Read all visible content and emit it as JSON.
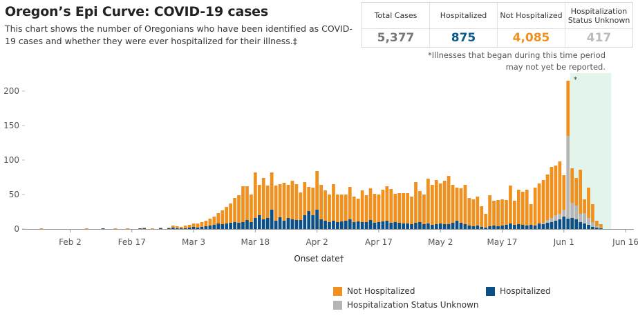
{
  "title": "Oregon’s Epi Curve: COVID-19 cases",
  "subtitle": "This chart shows the number of Oregonians who have been identified as COVID-19 cases and whether they were ever hospitalized for their illness.‡",
  "summary": {
    "total": {
      "label": "Total Cases",
      "value": "5,377",
      "color": "#777777"
    },
    "hosp": {
      "label": "Hospitalized",
      "value": "875",
      "color": "#0a5a8c"
    },
    "nothosp": {
      "label": "Not Hospitalized",
      "value": "4,085",
      "color": "#f0901e"
    },
    "unknown": {
      "label": "Hospitalization Status Unknown",
      "value": "417",
      "color": "#bbbbbb"
    }
  },
  "note": "*Illnesses that began during this time period may not yet be reported.",
  "legend": {
    "not_hosp": "Not Hospitalized",
    "hosp": "Hospitalized",
    "unknown": "Hospitalization Status Unknown"
  },
  "chart_data": {
    "type": "bar",
    "stacked": true,
    "xlabel": "Onset date†",
    "ylabel": "",
    "ylim": [
      0,
      220
    ],
    "yticks": [
      0,
      50,
      100,
      150,
      200
    ],
    "xticks": [
      "Feb 2",
      "Feb 17",
      "Mar 3",
      "Mar 18",
      "Apr 2",
      "Apr 17",
      "May 2",
      "May 17",
      "Jun 1",
      "Jun 16"
    ],
    "x_start": "Jan 22",
    "x_end": "Jun 18",
    "shaded_region": {
      "from": "Jun 3",
      "to": "Jun 12",
      "label": "*"
    },
    "colors": {
      "hosp": "#0b4f86",
      "unknown": "#b5b5b5",
      "not_hosp": "#f0901e",
      "shade": "#e3f4ea"
    },
    "series": [
      {
        "name": "Hospitalized",
        "key": "hosp"
      },
      {
        "name": "Hospitalization Status Unknown",
        "key": "unknown"
      },
      {
        "name": "Not Hospitalized",
        "key": "not_hosp"
      }
    ],
    "bars": [
      [
        "Jan 26",
        0,
        0,
        1
      ],
      [
        "Feb 6",
        0,
        0,
        1
      ],
      [
        "Feb 10",
        1,
        0,
        0
      ],
      [
        "Feb 13",
        0,
        0,
        1
      ],
      [
        "Feb 16",
        0,
        0,
        1
      ],
      [
        "Feb 19",
        1,
        0,
        0
      ],
      [
        "Feb 20",
        1,
        0,
        1
      ],
      [
        "Feb 22",
        0,
        0,
        1
      ],
      [
        "Feb 24",
        1,
        0,
        1
      ],
      [
        "Feb 26",
        1,
        0,
        1
      ],
      [
        "Feb 27",
        2,
        0,
        3
      ],
      [
        "Feb 28",
        1,
        0,
        3
      ],
      [
        "Feb 29",
        1,
        0,
        2
      ],
      [
        "Mar 1",
        1,
        0,
        4
      ],
      [
        "Mar 2",
        2,
        0,
        4
      ],
      [
        "Mar 3",
        3,
        0,
        5
      ],
      [
        "Mar 4",
        2,
        0,
        6
      ],
      [
        "Mar 5",
        3,
        0,
        7
      ],
      [
        "Mar 6",
        4,
        0,
        8
      ],
      [
        "Mar 7",
        5,
        0,
        10
      ],
      [
        "Mar 8",
        6,
        0,
        12
      ],
      [
        "Mar 9",
        8,
        0,
        15
      ],
      [
        "Mar 10",
        7,
        0,
        20
      ],
      [
        "Mar 11",
        8,
        0,
        24
      ],
      [
        "Mar 12",
        9,
        0,
        28
      ],
      [
        "Mar 13",
        10,
        0,
        35
      ],
      [
        "Mar 14",
        9,
        0,
        40
      ],
      [
        "Mar 15",
        10,
        0,
        52
      ],
      [
        "Mar 16",
        13,
        0,
        49
      ],
      [
        "Mar 17",
        10,
        0,
        40
      ],
      [
        "Mar 18",
        16,
        0,
        66
      ],
      [
        "Mar 19",
        20,
        0,
        44
      ],
      [
        "Mar 20",
        14,
        0,
        60
      ],
      [
        "Mar 21",
        16,
        0,
        47
      ],
      [
        "Mar 22",
        28,
        0,
        54
      ],
      [
        "Mar 23",
        12,
        0,
        51
      ],
      [
        "Mar 24",
        17,
        0,
        48
      ],
      [
        "Mar 25",
        12,
        0,
        55
      ],
      [
        "Mar 26",
        16,
        0,
        48
      ],
      [
        "Mar 27",
        14,
        0,
        56
      ],
      [
        "Mar 28",
        13,
        0,
        52
      ],
      [
        "Mar 29",
        13,
        0,
        40
      ],
      [
        "Mar 30",
        20,
        0,
        48
      ],
      [
        "Mar 31",
        26,
        0,
        35
      ],
      [
        "Apr 1",
        20,
        0,
        40
      ],
      [
        "Apr 2",
        28,
        0,
        56
      ],
      [
        "Apr 3",
        14,
        0,
        50
      ],
      [
        "Apr 4",
        12,
        0,
        44
      ],
      [
        "Apr 5",
        10,
        0,
        40
      ],
      [
        "Apr 6",
        12,
        0,
        53
      ],
      [
        "Apr 7",
        10,
        0,
        40
      ],
      [
        "Apr 8",
        11,
        0,
        39
      ],
      [
        "Apr 9",
        12,
        0,
        38
      ],
      [
        "Apr 10",
        14,
        0,
        47
      ],
      [
        "Apr 11",
        10,
        0,
        37
      ],
      [
        "Apr 12",
        11,
        0,
        33
      ],
      [
        "Apr 13",
        10,
        0,
        46
      ],
      [
        "Apr 14",
        10,
        0,
        39
      ],
      [
        "Apr 15",
        13,
        0,
        46
      ],
      [
        "Apr 16",
        9,
        0,
        42
      ],
      [
        "Apr 17",
        10,
        0,
        40
      ],
      [
        "Apr 18",
        11,
        0,
        46
      ],
      [
        "Apr 19",
        12,
        0,
        50
      ],
      [
        "Apr 20",
        9,
        0,
        49
      ],
      [
        "Apr 21",
        10,
        0,
        41
      ],
      [
        "Apr 22",
        9,
        0,
        43
      ],
      [
        "Apr 23",
        8,
        0,
        44
      ],
      [
        "Apr 24",
        8,
        0,
        44
      ],
      [
        "Apr 25",
        7,
        0,
        40
      ],
      [
        "Apr 26",
        9,
        0,
        59
      ],
      [
        "Apr 27",
        10,
        0,
        45
      ],
      [
        "Apr 28",
        7,
        0,
        43
      ],
      [
        "Apr 29",
        8,
        0,
        65
      ],
      [
        "Apr 30",
        6,
        0,
        58
      ],
      [
        "May 1",
        7,
        0,
        64
      ],
      [
        "May 2",
        8,
        0,
        58
      ],
      [
        "May 3",
        7,
        0,
        63
      ],
      [
        "May 4",
        7,
        0,
        70
      ],
      [
        "May 5",
        9,
        0,
        55
      ],
      [
        "May 6",
        12,
        0,
        48
      ],
      [
        "May 7",
        9,
        0,
        50
      ],
      [
        "May 8",
        7,
        0,
        57
      ],
      [
        "May 9",
        5,
        0,
        40
      ],
      [
        "May 10",
        4,
        0,
        39
      ],
      [
        "May 11",
        5,
        0,
        42
      ],
      [
        "May 12",
        3,
        0,
        30
      ],
      [
        "May 13",
        2,
        0,
        20
      ],
      [
        "May 14",
        4,
        0,
        45
      ],
      [
        "May 15",
        5,
        0,
        36
      ],
      [
        "May 16",
        4,
        0,
        38
      ],
      [
        "May 17",
        5,
        0,
        38
      ],
      [
        "May 18",
        6,
        0,
        36
      ],
      [
        "May 19",
        8,
        0,
        55
      ],
      [
        "May 20",
        6,
        0,
        35
      ],
      [
        "May 21",
        7,
        0,
        50
      ],
      [
        "May 22",
        6,
        0,
        48
      ],
      [
        "May 23",
        5,
        0,
        52
      ],
      [
        "May 24",
        6,
        0,
        30
      ],
      [
        "May 25",
        5,
        0,
        55
      ],
      [
        "May 26",
        8,
        0,
        58
      ],
      [
        "May 27",
        7,
        2,
        62
      ],
      [
        "May 28",
        9,
        4,
        66
      ],
      [
        "May 29",
        10,
        6,
        74
      ],
      [
        "May 30",
        12,
        8,
        72
      ],
      [
        "May 31",
        14,
        8,
        76
      ],
      [
        "Jun 1",
        18,
        10,
        50
      ],
      [
        "Jun 2",
        15,
        120,
        80
      ],
      [
        "Jun 3",
        16,
        22,
        50
      ],
      [
        "Jun 4",
        14,
        20,
        40
      ],
      [
        "Jun 5",
        10,
        12,
        64
      ],
      [
        "Jun 6",
        8,
        15,
        20
      ],
      [
        "Jun 7",
        6,
        10,
        44
      ],
      [
        "Jun 8",
        3,
        7,
        26
      ],
      [
        "Jun 9",
        2,
        2,
        8
      ],
      [
        "Jun 10",
        1,
        1,
        5
      ]
    ]
  }
}
